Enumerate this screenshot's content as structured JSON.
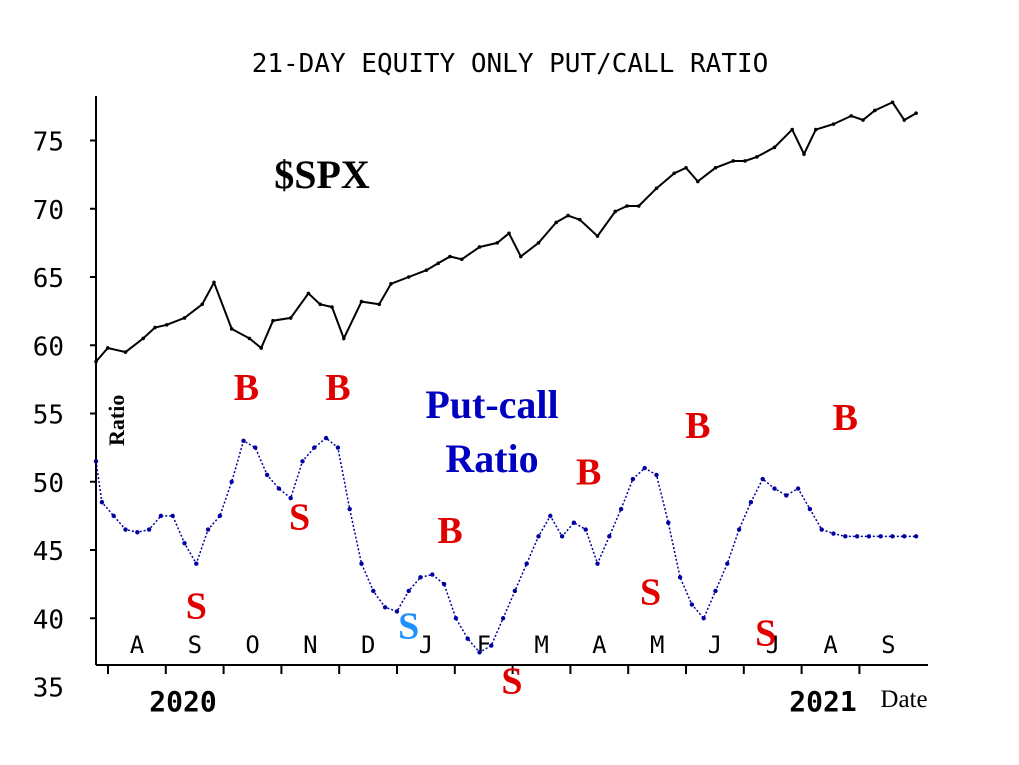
{
  "chart_data": {
    "type": "line",
    "title": "21-DAY EQUITY ONLY PUT/CALL RATIO",
    "ylabel": "Ratio",
    "xlabel": "Date",
    "ylim": [
      35,
      78
    ],
    "y_ticks": [
      "75",
      "70",
      "65",
      "60",
      "55",
      "50",
      "45",
      "40",
      "35"
    ],
    "months": [
      "A",
      "S",
      "O",
      "N",
      "D",
      "J",
      "F",
      "M",
      "A",
      "M",
      "J",
      "J",
      "A",
      "S"
    ],
    "years": [
      "2020",
      "2021"
    ],
    "colors": {
      "spx": "#000000",
      "ratio": "#0000a0",
      "buy": "#e00000",
      "sell": "#e00000",
      "sell_alt": "#1e90ff",
      "label_blue": "#0000c0"
    },
    "series": [
      {
        "name": "$SPX",
        "x": [
          0.0,
          0.2,
          0.5,
          0.8,
          1.0,
          1.2,
          1.5,
          1.8,
          2.0,
          2.3,
          2.6,
          2.8,
          3.0,
          3.3,
          3.6,
          3.8,
          4.0,
          4.2,
          4.5,
          4.8,
          5.0,
          5.3,
          5.6,
          5.8,
          6.0,
          6.2,
          6.5,
          6.8,
          7.0,
          7.2,
          7.5,
          7.8,
          8.0,
          8.2,
          8.5,
          8.8,
          9.0,
          9.2,
          9.5,
          9.8,
          10.0,
          10.2,
          10.5,
          10.8,
          11.0,
          11.2,
          11.5,
          11.8,
          12.0,
          12.2,
          12.5,
          12.8,
          13.0,
          13.2,
          13.5,
          13.7,
          13.9
        ],
        "values": [
          58.8,
          59.8,
          59.5,
          60.5,
          61.3,
          61.5,
          62.0,
          63.0,
          64.6,
          61.2,
          60.5,
          59.8,
          61.8,
          62.0,
          63.8,
          63.0,
          62.8,
          60.5,
          63.2,
          63.0,
          64.5,
          65.0,
          65.5,
          66.0,
          66.5,
          66.3,
          67.2,
          67.5,
          68.2,
          66.5,
          67.5,
          69.0,
          69.5,
          69.2,
          68.0,
          69.8,
          70.2,
          70.2,
          71.5,
          72.6,
          73.0,
          72.0,
          73.0,
          73.5,
          73.5,
          73.8,
          74.5,
          75.8,
          74.0,
          75.8,
          76.2,
          76.8,
          76.5,
          77.2,
          77.8,
          76.5,
          77.0
        ]
      },
      {
        "name": "Put-call Ratio",
        "x": [
          0.0,
          0.1,
          0.3,
          0.5,
          0.7,
          0.9,
          1.1,
          1.3,
          1.5,
          1.7,
          1.9,
          2.1,
          2.3,
          2.5,
          2.7,
          2.9,
          3.1,
          3.3,
          3.5,
          3.7,
          3.9,
          4.1,
          4.3,
          4.5,
          4.7,
          4.9,
          5.1,
          5.3,
          5.5,
          5.7,
          5.9,
          6.1,
          6.3,
          6.5,
          6.7,
          6.9,
          7.1,
          7.3,
          7.5,
          7.7,
          7.9,
          8.1,
          8.3,
          8.5,
          8.7,
          8.9,
          9.1,
          9.3,
          9.5,
          9.7,
          9.9,
          10.1,
          10.3,
          10.5,
          10.7,
          10.9,
          11.1,
          11.3,
          11.5,
          11.7,
          11.9,
          12.1,
          12.3,
          12.5,
          12.7,
          12.9,
          13.1,
          13.3,
          13.5,
          13.7,
          13.9
        ],
        "values": [
          51.5,
          48.5,
          47.5,
          46.5,
          46.3,
          46.5,
          47.5,
          47.5,
          45.5,
          44.0,
          46.5,
          47.5,
          50.0,
          53.0,
          52.5,
          50.5,
          49.5,
          48.8,
          51.5,
          52.5,
          53.2,
          52.5,
          48.0,
          44.0,
          42.0,
          40.8,
          40.5,
          42.0,
          43.0,
          43.2,
          42.5,
          40.0,
          38.5,
          37.5,
          38.0,
          40.0,
          42.0,
          44.0,
          46.0,
          47.5,
          46.0,
          47.0,
          46.5,
          44.0,
          46.0,
          48.0,
          50.2,
          51.0,
          50.5,
          47.0,
          43.0,
          41.0,
          40.0,
          42.0,
          44.0,
          46.5,
          48.5,
          50.2,
          49.5,
          49.0,
          49.5,
          48.0,
          46.5,
          46.2,
          46.0,
          46.0,
          46.0,
          46.0,
          46.0,
          46.0,
          46.0
        ]
      }
    ],
    "annotations": {
      "spx_label": "$SPX",
      "ratio_label_line1": "Put-call",
      "ratio_label_line2": "Ratio",
      "signals": [
        {
          "text": "S",
          "x": 1.7,
          "y": 40.0,
          "color": "red"
        },
        {
          "text": "B",
          "x": 2.55,
          "y": 56.0,
          "color": "red"
        },
        {
          "text": "S",
          "x": 3.45,
          "y": 46.5,
          "color": "red"
        },
        {
          "text": "B",
          "x": 4.1,
          "y": 56.0,
          "color": "red"
        },
        {
          "text": "S",
          "x": 5.3,
          "y": 38.5,
          "color": "blue"
        },
        {
          "text": "B",
          "x": 6.0,
          "y": 45.5,
          "color": "red"
        },
        {
          "text": "S",
          "x": 7.05,
          "y": 34.5,
          "color": "red"
        },
        {
          "text": "B",
          "x": 8.35,
          "y": 49.8,
          "color": "red"
        },
        {
          "text": "S",
          "x": 9.4,
          "y": 41.0,
          "color": "red"
        },
        {
          "text": "B",
          "x": 10.2,
          "y": 53.2,
          "color": "red"
        },
        {
          "text": "S",
          "x": 11.35,
          "y": 38.0,
          "color": "red"
        },
        {
          "text": "B",
          "x": 12.7,
          "y": 53.8,
          "color": "red"
        }
      ]
    },
    "grid": false
  }
}
